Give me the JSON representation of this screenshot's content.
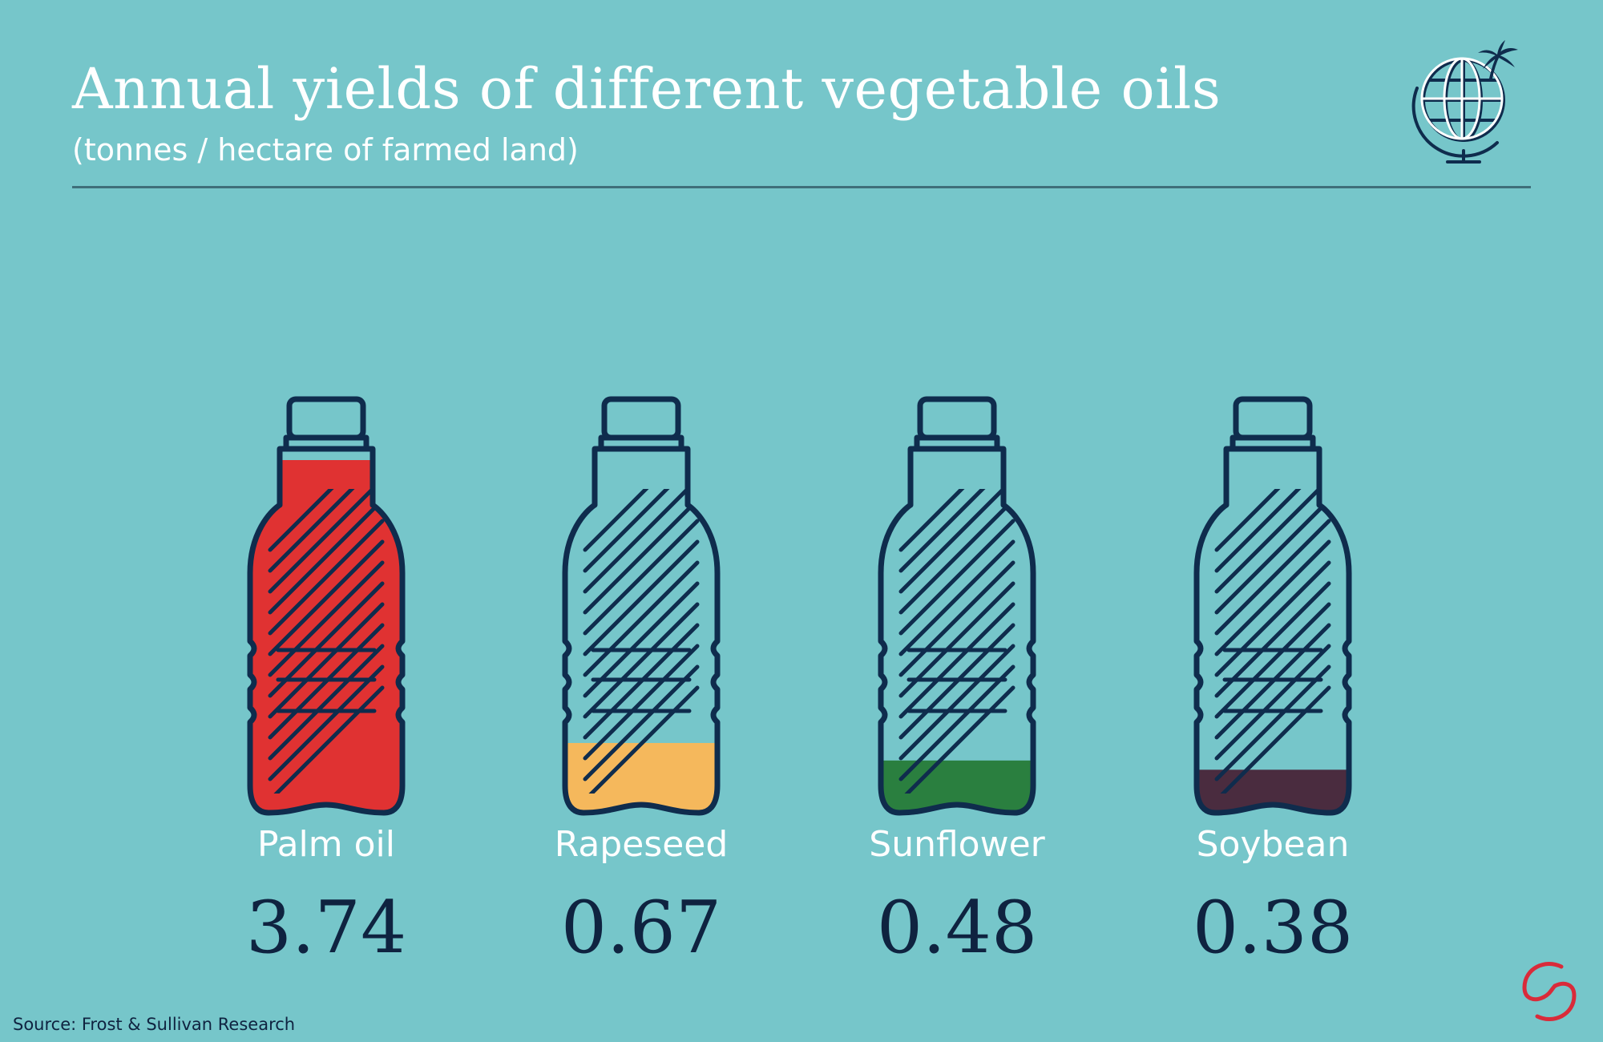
{
  "header": {
    "title": "Annual yields of different vegetable oils",
    "subtitle": "(tonnes / hectare of farmed land)"
  },
  "footer": {
    "source": "Source: Frost & Sullivan Research"
  },
  "icons": {
    "globe": "globe-palm-icon",
    "logo": "brand-logo-icon"
  },
  "colors": {
    "background": "#76c6ca",
    "outline": "#0f2c4d",
    "label": "#ffffff",
    "value": "#0f2340"
  },
  "chart_data": {
    "type": "bar",
    "title": "Annual yields of different vegetable oils",
    "subtitle": "(tonnes / hectare of farmed land)",
    "categories": [
      "Palm oil",
      "Rapeseed",
      "Sunflower",
      "Soybean"
    ],
    "values": [
      3.74,
      0.67,
      0.48,
      0.38
    ],
    "value_labels": [
      "3.74",
      "0.67",
      "0.48",
      "0.38"
    ],
    "colors": [
      "#e03232",
      "#f5b85c",
      "#2a7f3f",
      "#4a2c3f"
    ],
    "grid": false,
    "legend": "none"
  }
}
